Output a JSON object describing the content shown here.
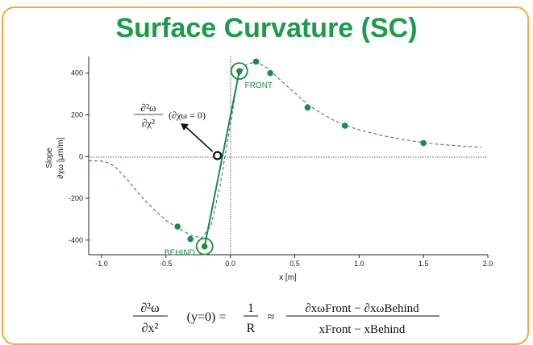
{
  "title": "Surface Curvature (SC)",
  "chart_data": {
    "type": "scatter",
    "xlabel": "x [m]",
    "ylabel_main": "Slope",
    "ylabel_sub": "∂χω [μm/m]",
    "xlim": [
      -1.1,
      2.0
    ],
    "ylim": [
      -470,
      480
    ],
    "x_ticks": [
      {
        "value": -1.0,
        "label": "-1.0"
      },
      {
        "value": -0.5,
        "label": "-0.5"
      },
      {
        "value": 0.0,
        "label": "0.0"
      },
      {
        "value": 0.5,
        "label": "0.5"
      },
      {
        "value": 1.0,
        "label": "1.0"
      },
      {
        "value": 1.5,
        "label": "1.5"
      },
      {
        "value": 2.0,
        "label": "2.0"
      }
    ],
    "y_ticks": [
      {
        "value": 400,
        "label": "400"
      },
      {
        "value": 200,
        "label": "200"
      },
      {
        "value": 0,
        "label": "0"
      },
      {
        "value": -200,
        "label": "-200"
      },
      {
        "value": -400,
        "label": "-400"
      }
    ],
    "measured_points": [
      {
        "x": -0.41,
        "y": -335
      },
      {
        "x": -0.31,
        "y": -395
      },
      {
        "x": -0.2,
        "y": -430
      },
      {
        "x": 0.07,
        "y": 410
      },
      {
        "x": 0.2,
        "y": 455
      },
      {
        "x": 0.31,
        "y": 400
      },
      {
        "x": 0.6,
        "y": 235
      },
      {
        "x": 0.89,
        "y": 148
      },
      {
        "x": 1.5,
        "y": 65
      }
    ],
    "fitted_curve": [
      [
        -1.1,
        -20
      ],
      [
        -0.98,
        -22
      ],
      [
        -0.9,
        -45
      ],
      [
        -0.8,
        -110
      ],
      [
        -0.7,
        -185
      ],
      [
        -0.6,
        -250
      ],
      [
        -0.5,
        -305
      ],
      [
        -0.4,
        -345
      ],
      [
        -0.3,
        -378
      ],
      [
        -0.22,
        -390
      ],
      [
        -0.15,
        -330
      ],
      [
        -0.08,
        -140
      ],
      [
        0.0,
        150
      ],
      [
        0.06,
        380
      ],
      [
        0.12,
        440
      ],
      [
        0.2,
        455
      ],
      [
        0.3,
        420
      ],
      [
        0.4,
        360
      ],
      [
        0.5,
        305
      ],
      [
        0.6,
        250
      ],
      [
        0.7,
        210
      ],
      [
        0.8,
        175
      ],
      [
        0.9,
        148
      ],
      [
        1.0,
        128
      ],
      [
        1.2,
        98
      ],
      [
        1.4,
        76
      ],
      [
        1.6,
        60
      ],
      [
        1.8,
        50
      ],
      [
        1.95,
        45
      ]
    ],
    "behind_point": {
      "x": -0.2,
      "y": -430,
      "label": "BEHIND"
    },
    "front_point": {
      "x": 0.07,
      "y": 410,
      "label": "FRONT"
    },
    "inflection_point": {
      "x": -0.1,
      "y": 5
    },
    "annotation": "∂²ω / ∂χ²  (∂χω = 0)",
    "colors": {
      "points": "#1f8a45",
      "curve": "#3b56a8",
      "line": "#1f8a45"
    }
  },
  "annotation_text": {
    "numerator": "∂²ω",
    "denominator": "∂χ²",
    "condition": "(∂χω = 0)"
  },
  "formula": {
    "lhs_num": "∂²ω",
    "lhs_den": "∂x²",
    "condition": "(y=0) =",
    "mid_num": "1",
    "mid_den": "R",
    "approx": "≈",
    "rhs_num": "∂xωFront − ∂xωBehind",
    "rhs_den": "xFront − xBehind"
  }
}
